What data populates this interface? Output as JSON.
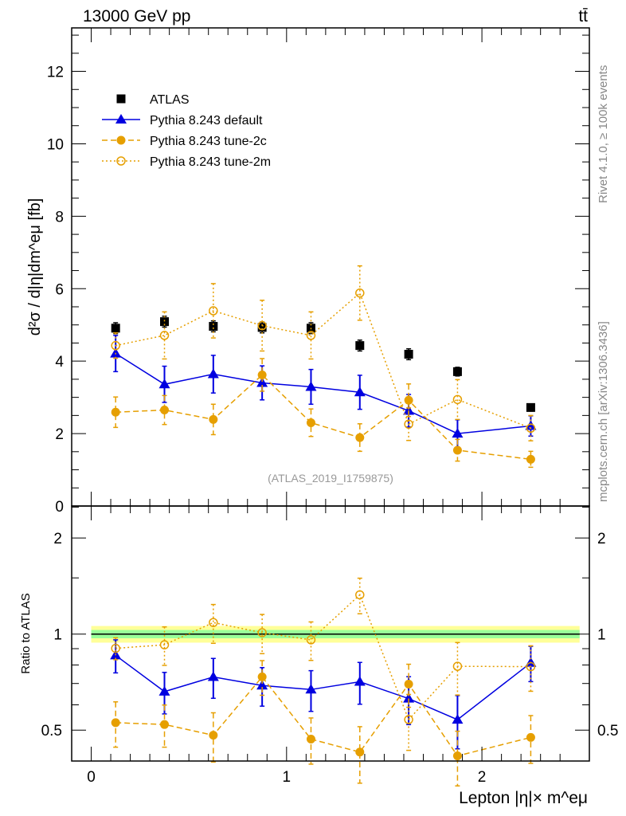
{
  "header": {
    "energy_label": "13000 GeV pp",
    "process_label": "tt̄"
  },
  "side_labels": {
    "rivet": "Rivet 4.1.0, ≥ 100k events",
    "source": "mcplots.cern.ch [arXiv:1306.3436]"
  },
  "chart_data": [
    {
      "type": "line",
      "title": "",
      "analysis_label": "(ATLAS_2019_I1759875)",
      "ylabel": "d²σ / d|η|dm^eμ [fb]",
      "xlabel": "Lepton |η|× m^eμ",
      "xlim": [
        -0.1,
        2.55
      ],
      "ylim": [
        0,
        13.2
      ],
      "yticks": [
        0,
        2,
        4,
        6,
        8,
        10,
        12
      ],
      "xticks": [
        0,
        1,
        2
      ],
      "legend_position": "top-left",
      "x": [
        0.125,
        0.375,
        0.625,
        0.875,
        1.125,
        1.375,
        1.625,
        1.875,
        2.25
      ],
      "series": [
        {
          "name": "ATLAS",
          "color": "#000000",
          "marker": "square",
          "line": "none",
          "values": [
            4.91,
            5.09,
            4.96,
            4.93,
            4.91,
            4.43,
            4.19,
            3.71,
            2.72
          ],
          "yerr": [
            0.15,
            0.15,
            0.15,
            0.15,
            0.15,
            0.15,
            0.15,
            0.12,
            0.1
          ]
        },
        {
          "name": "Pythia 8.243 default",
          "color": "#0000e0",
          "marker": "triangle",
          "line": "solid",
          "values": [
            4.21,
            3.36,
            3.64,
            3.4,
            3.29,
            3.14,
            2.63,
            2.0,
            2.21
          ],
          "yerr": [
            0.5,
            0.5,
            0.52,
            0.47,
            0.48,
            0.47,
            0.45,
            0.38,
            0.28
          ]
        },
        {
          "name": "Pythia 8.243 tune-2c",
          "color": "#e69f00",
          "marker": "circle",
          "line": "dashed",
          "values": [
            2.59,
            2.65,
            2.39,
            3.62,
            2.3,
            1.89,
            2.92,
            1.54,
            1.29
          ],
          "yerr": [
            0.42,
            0.4,
            0.42,
            0.45,
            0.38,
            0.38,
            0.45,
            0.3,
            0.22
          ]
        },
        {
          "name": "Pythia 8.243 tune-2m",
          "color": "#e69f00",
          "marker": "open-circle",
          "line": "dotted",
          "values": [
            4.43,
            4.71,
            5.39,
            4.98,
            4.71,
            5.88,
            2.26,
            2.94,
            2.15
          ],
          "yerr": [
            0.35,
            0.65,
            0.75,
            0.7,
            0.65,
            0.75,
            0.45,
            0.55,
            0.35
          ]
        }
      ]
    },
    {
      "type": "line",
      "ylabel": "Ratio to ATLAS",
      "yscale": "log",
      "ylim": [
        0.4,
        2.52
      ],
      "yticks": [
        0.5,
        1,
        2
      ],
      "ytick_labels": [
        "0.5",
        "1",
        "2"
      ],
      "xtick_labels": [
        "0",
        "1",
        "2"
      ],
      "reference_band": {
        "inner": 0.03,
        "outer": 0.06,
        "inner_color": "#99ff99",
        "outer_color": "#ffff99"
      }
    }
  ]
}
